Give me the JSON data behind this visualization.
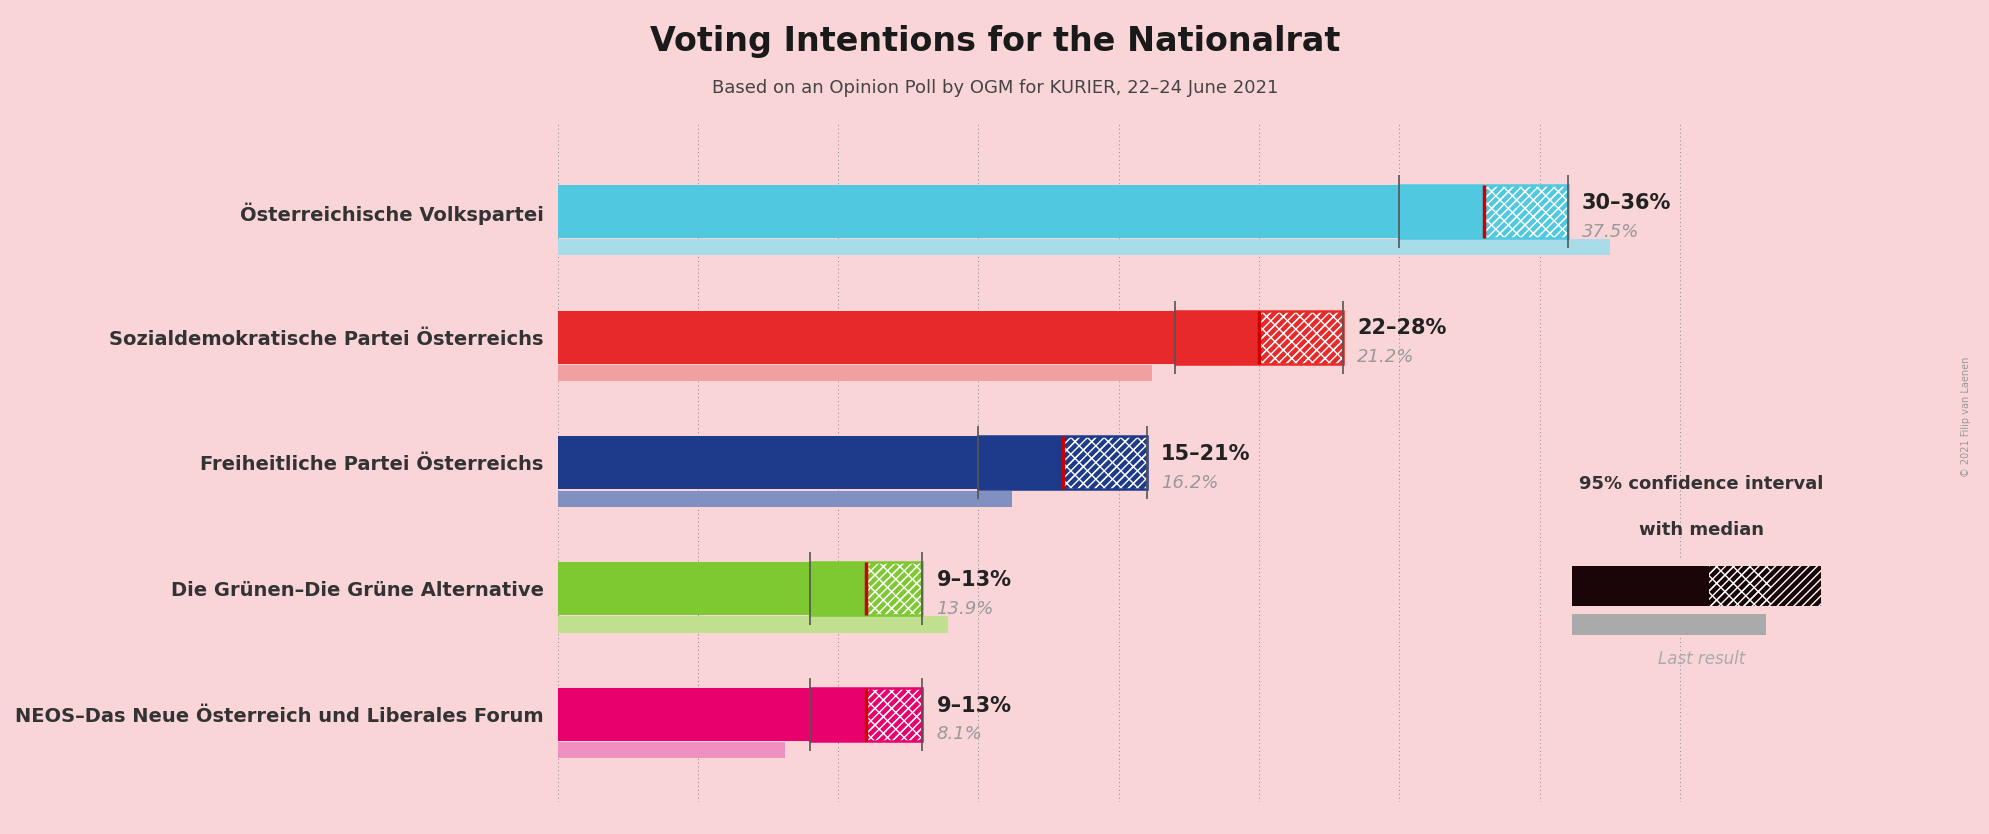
{
  "title": "Voting Intentions for the Nationalrat",
  "subtitle": "Based on an Opinion Poll by OGM for KURIER, 22–24 June 2021",
  "background_color": "#f9d5d8",
  "parties": [
    "Österreichische Volkspartei",
    "Sozialdemokratische Partei Österreichs",
    "Freiheitliche Partei Österreichs",
    "Die Grünen–Die Grüne Alternative",
    "NEOS–Das Neue Österreich und Liberales Forum"
  ],
  "ci_low": [
    30,
    22,
    15,
    9,
    9
  ],
  "ci_high": [
    36,
    28,
    21,
    13,
    13
  ],
  "median": [
    33,
    25,
    18,
    11,
    11
  ],
  "last_result": [
    37.5,
    21.2,
    16.2,
    13.9,
    8.1
  ],
  "ci_labels": [
    "30–36%",
    "22–28%",
    "15–21%",
    "9–13%",
    "9–13%"
  ],
  "last_result_labels": [
    "37.5%",
    "21.2%",
    "16.2%",
    "13.9%",
    "8.1%"
  ],
  "colors": [
    "#4fc8e0",
    "#e8292a",
    "#1e3a8a",
    "#7ec832",
    "#e8006c"
  ],
  "last_result_colors": [
    "#a8dce8",
    "#f0a0a0",
    "#8090c0",
    "#c0e090",
    "#f090c0"
  ],
  "median_line_color": "#cc0000",
  "bar_height": 0.42,
  "last_result_bar_height": 0.13,
  "xlim_max": 42,
  "grid_ticks": [
    0,
    5,
    10,
    15,
    20,
    25,
    30,
    35,
    40
  ],
  "legend_text_1": "95% confidence interval",
  "legend_text_2": "with median",
  "legend_text_3": "Last result",
  "copyright": "© 2021 Filip van Laenen"
}
